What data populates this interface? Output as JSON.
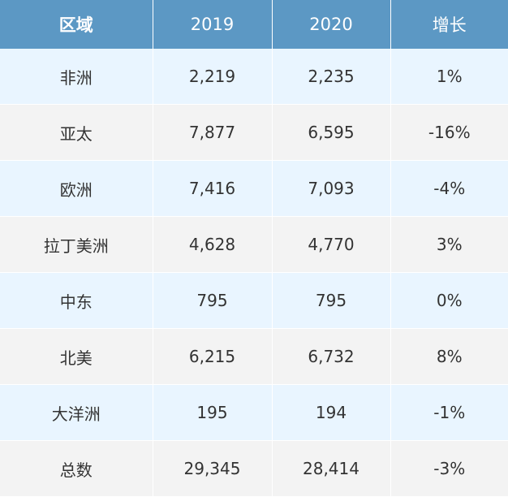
{
  "table": {
    "headers": [
      "区域",
      "2019",
      "2020",
      "增长"
    ],
    "rows": [
      [
        "非洲",
        "2,219",
        "2,235",
        "1%"
      ],
      [
        "亚太",
        "7,877",
        "6,595",
        "-16%"
      ],
      [
        "欧洲",
        "7,416",
        "7,093",
        "-4%"
      ],
      [
        "拉丁美洲",
        "4,628",
        "4,770",
        "3%"
      ],
      [
        "中东",
        "795",
        "795",
        "0%"
      ],
      [
        "北美",
        "6,215",
        "6,732",
        "8%"
      ],
      [
        "大洋洲",
        "195",
        "194",
        "-1%"
      ],
      [
        "总数",
        "29,345",
        "28,414",
        "-3%"
      ]
    ]
  },
  "colors": {
    "header_bg": "#5c98c4",
    "row_odd_bg": "#e9f5ff",
    "row_even_bg": "#f3f3f3"
  }
}
